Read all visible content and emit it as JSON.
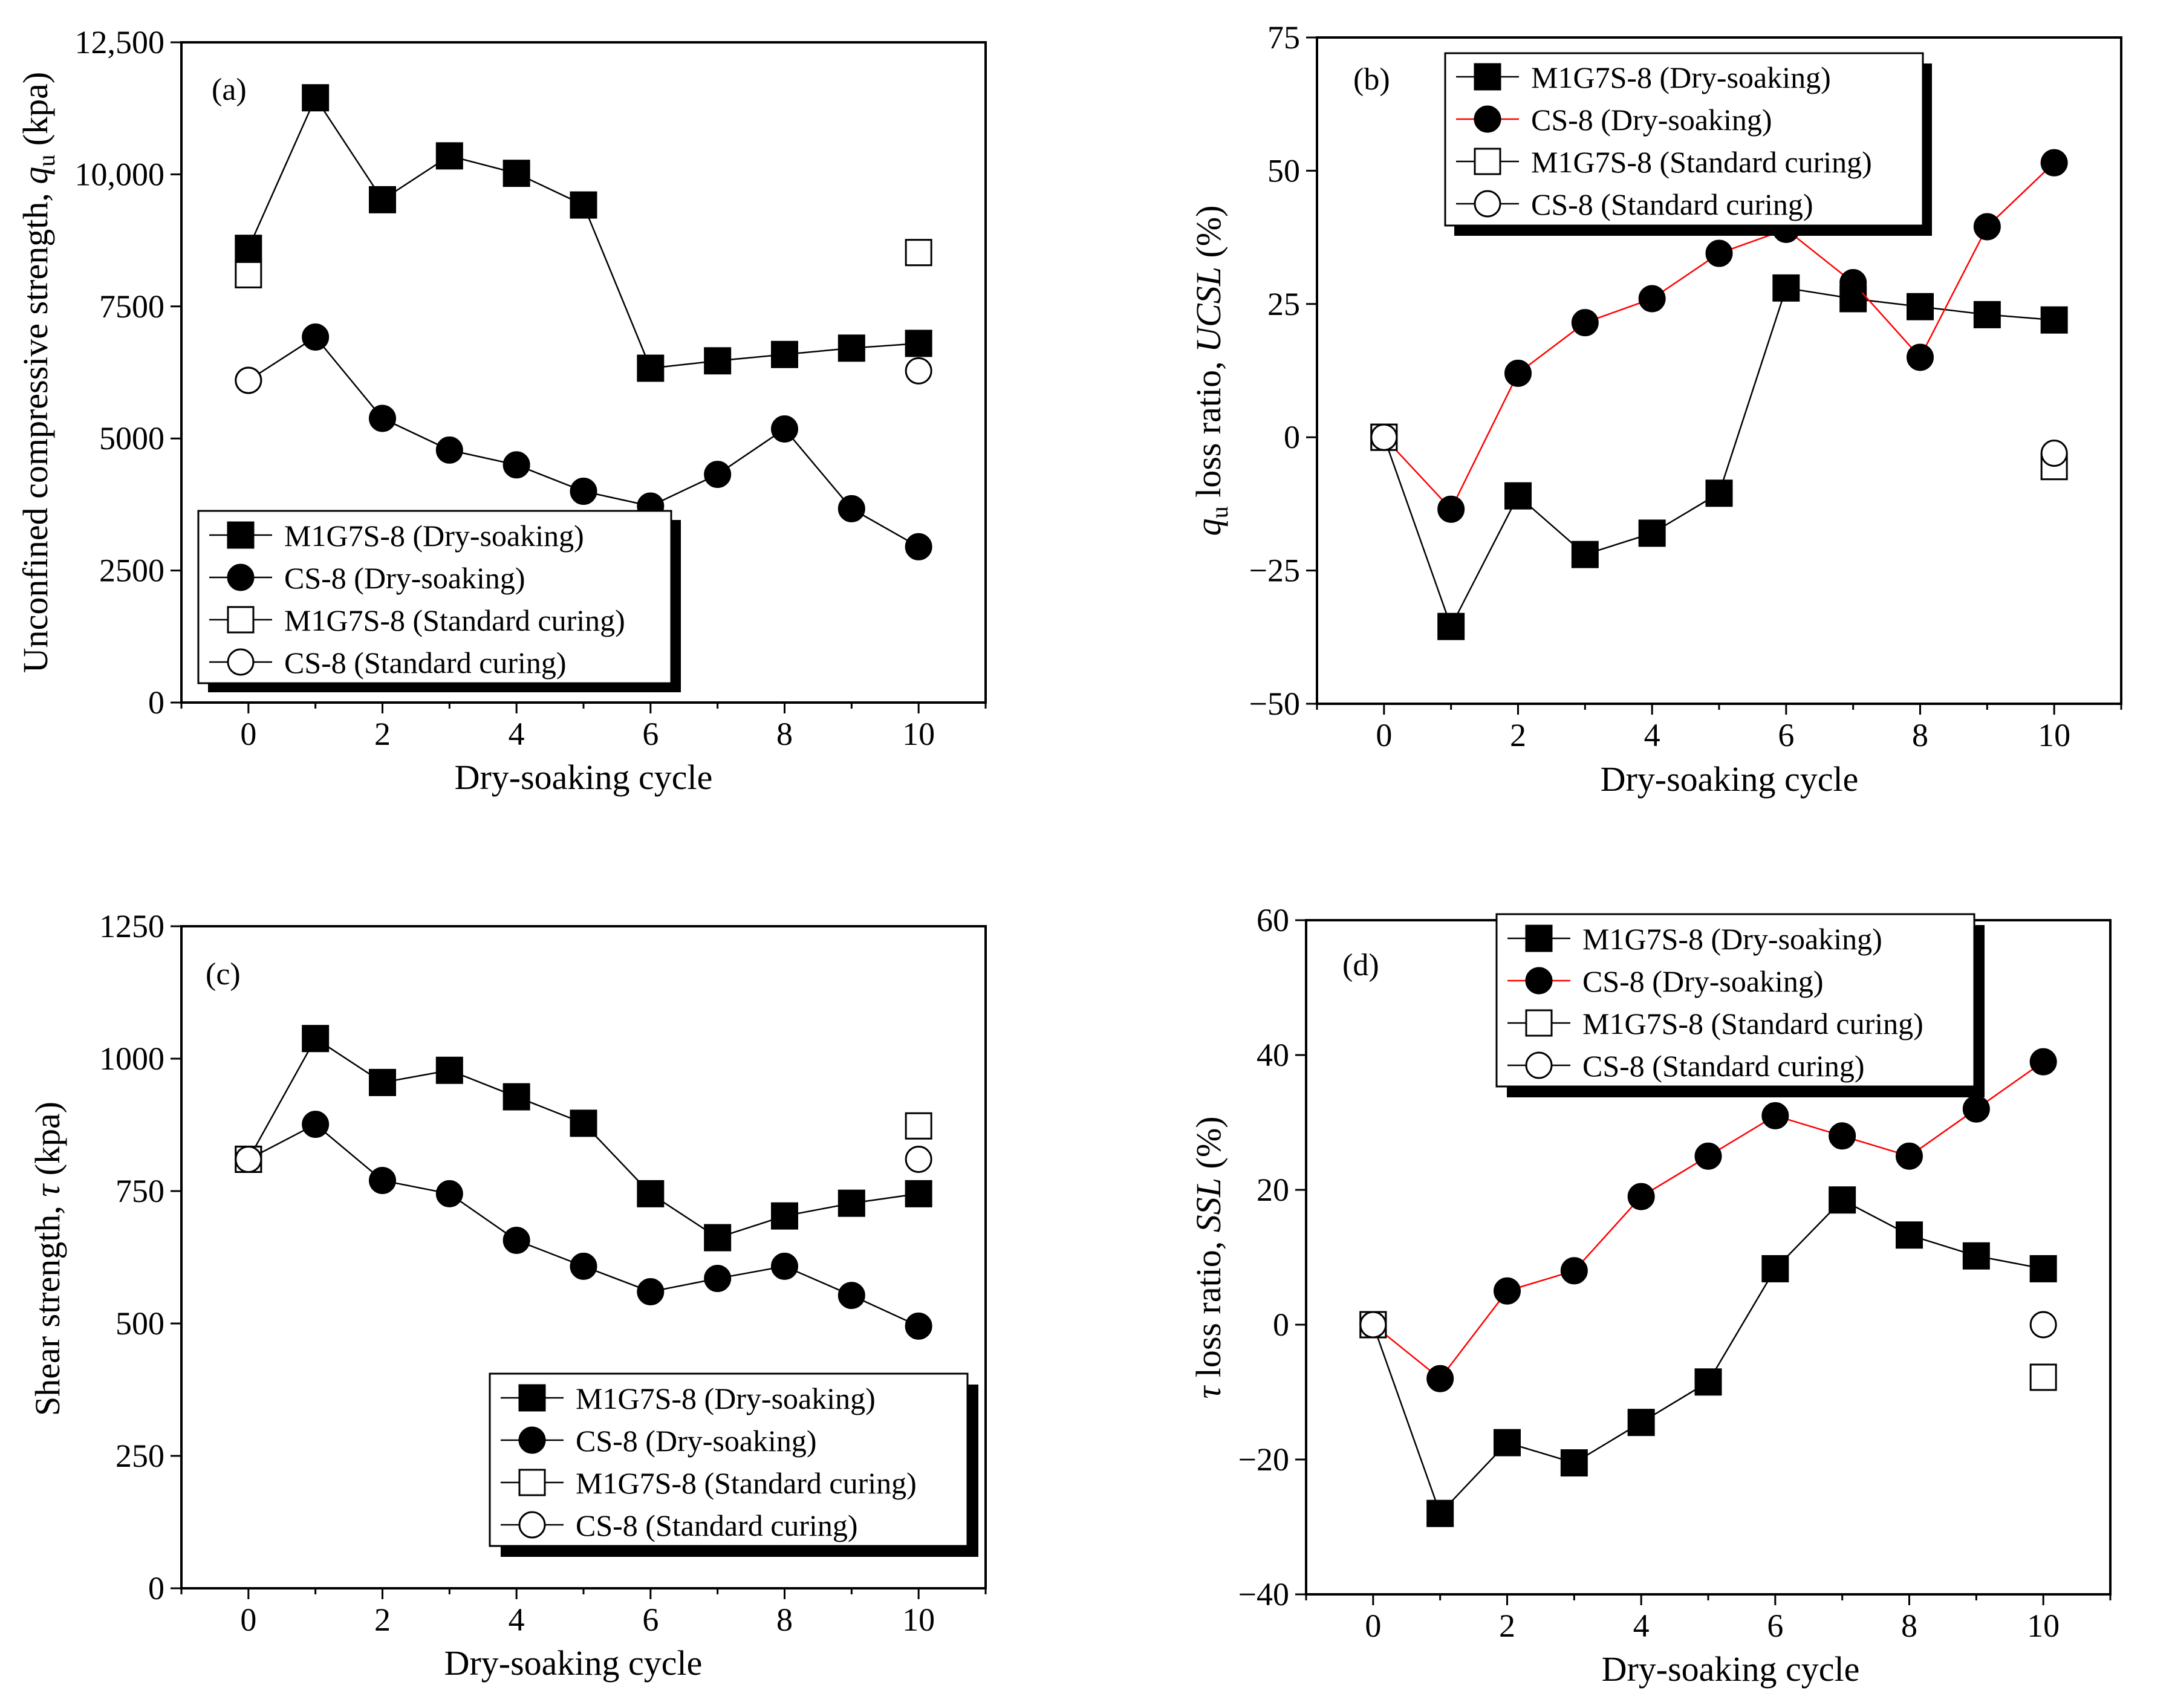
{
  "chart_data": [
    {
      "id": "a",
      "type": "line",
      "panel_label": "(a)",
      "xlabel": "Dry-soaking cycle",
      "ylabel_main": "Unconfined compressive strength, ",
      "ylabel_sym": "q",
      "ylabel_sub": "u",
      "ylabel_unit": " (kpa)",
      "xlim": [
        -1,
        11
      ],
      "ylim": [
        0,
        12500
      ],
      "xticks": [
        0,
        2,
        4,
        6,
        8,
        10
      ],
      "xtick_labels": [
        "0",
        "2",
        "4",
        "6",
        "8",
        "10"
      ],
      "yticks": [
        0,
        2500,
        5000,
        7500,
        10000,
        12500
      ],
      "ytick_labels": [
        "0",
        "2500",
        "5000",
        "7500",
        "10,000",
        "12,500"
      ],
      "legend_position": "bottom-left",
      "series": [
        {
          "name": "M1G7S-8 (Dry-soaking)",
          "marker": "square-filled",
          "line_color": "#000000",
          "x": [
            0,
            1,
            2,
            3,
            4,
            5,
            6,
            7,
            8,
            9,
            10
          ],
          "values": [
            8600,
            11450,
            9520,
            10350,
            10020,
            9420,
            6330,
            6470,
            6590,
            6710,
            6800
          ]
        },
        {
          "name": "CS-8 (Dry-soaking)",
          "marker": "circle-filled",
          "line_color": "#000000",
          "x": [
            0,
            1,
            2,
            3,
            4,
            5,
            6,
            7,
            8,
            9,
            10
          ],
          "values": [
            6100,
            6920,
            5380,
            4780,
            4500,
            4000,
            3720,
            4320,
            5180,
            3670,
            2950
          ]
        },
        {
          "name": "M1G7S-8 (Standard curing)",
          "marker": "square-open",
          "line_color": "#000000",
          "x": [
            0,
            10
          ],
          "values": [
            8100,
            8520
          ],
          "connect": false
        },
        {
          "name": "CS-8 (Standard curing)",
          "marker": "circle-open",
          "line_color": "#000000",
          "x": [
            0,
            10
          ],
          "values": [
            6100,
            6280
          ],
          "connect": false
        }
      ]
    },
    {
      "id": "b",
      "type": "line",
      "panel_label": "(b)",
      "xlabel": "Dry-soaking cycle",
      "ylabel_sym": "q",
      "ylabel_sub": "u",
      "ylabel_main": " loss ratio, ",
      "ylabel_italic": "UCSL",
      "ylabel_unit": " (%)",
      "xlim": [
        -1,
        11
      ],
      "ylim": [
        -50,
        75
      ],
      "xticks": [
        0,
        2,
        4,
        6,
        8,
        10
      ],
      "xtick_labels": [
        "0",
        "2",
        "4",
        "6",
        "8",
        "10"
      ],
      "yticks": [
        -50,
        -25,
        0,
        25,
        50,
        75
      ],
      "ytick_labels": [
        "−50",
        "−25",
        "0",
        "25",
        "50",
        "75"
      ],
      "legend_position": "top-center",
      "series": [
        {
          "name": "M1G7S-8 (Dry-soaking)",
          "marker": "square-filled",
          "line_color": "#000000",
          "x": [
            0,
            1,
            2,
            3,
            4,
            5,
            6,
            7,
            8,
            9,
            10
          ],
          "values": [
            0,
            -35.5,
            -11,
            -22,
            -18,
            -10.5,
            28,
            26,
            24.5,
            23,
            22
          ]
        },
        {
          "name": "CS-8 (Dry-soaking)",
          "marker": "circle-filled",
          "line_color": "#ff0000",
          "x": [
            0,
            1,
            2,
            3,
            4,
            5,
            6,
            7,
            8,
            9,
            10
          ],
          "values": [
            0,
            -13.5,
            12,
            21.5,
            26,
            34.5,
            39,
            29,
            15,
            39.5,
            51.5
          ]
        },
        {
          "name": "M1G7S-8 (Standard curing)",
          "marker": "square-open",
          "line_color": "#000000",
          "x": [
            0,
            10
          ],
          "values": [
            0,
            -5.5
          ],
          "connect": false
        },
        {
          "name": "CS-8 (Standard curing)",
          "marker": "circle-open",
          "line_color": "#000000",
          "x": [
            0,
            10
          ],
          "values": [
            0,
            -3
          ],
          "connect": false
        }
      ]
    },
    {
      "id": "c",
      "type": "line",
      "panel_label": "(c)",
      "xlabel": "Dry-soaking cycle",
      "ylabel_main": "Shear strength, ",
      "ylabel_italic": "τ",
      "ylabel_unit": " (kpa)",
      "xlim": [
        -1,
        11
      ],
      "ylim": [
        0,
        1250
      ],
      "xticks": [
        0,
        2,
        4,
        6,
        8,
        10
      ],
      "xtick_labels": [
        "0",
        "2",
        "4",
        "6",
        "8",
        "10"
      ],
      "yticks": [
        0,
        250,
        500,
        750,
        1000,
        1250
      ],
      "ytick_labels": [
        "0",
        "250",
        "500",
        "750",
        "1000",
        "1250"
      ],
      "legend_position": "bottom-right",
      "series": [
        {
          "name": "M1G7S-8 (Dry-soaking)",
          "marker": "square-filled",
          "line_color": "#000000",
          "x": [
            0,
            1,
            2,
            3,
            4,
            5,
            6,
            7,
            8,
            9,
            10
          ],
          "values": [
            810,
            1038,
            955,
            978,
            928,
            878,
            745,
            662,
            703,
            727,
            745
          ]
        },
        {
          "name": "CS-8 (Dry-soaking)",
          "marker": "circle-filled",
          "line_color": "#000000",
          "x": [
            0,
            1,
            2,
            3,
            4,
            5,
            6,
            7,
            8,
            9,
            10
          ],
          "values": [
            810,
            876,
            770,
            745,
            657,
            608,
            560,
            585,
            608,
            553,
            495
          ]
        },
        {
          "name": "M1G7S-8 (Standard curing)",
          "marker": "square-open",
          "line_color": "#000000",
          "x": [
            0,
            10
          ],
          "values": [
            810,
            873
          ],
          "connect": false
        },
        {
          "name": "CS-8 (Standard curing)",
          "marker": "circle-open",
          "line_color": "#000000",
          "x": [
            0,
            10
          ],
          "values": [
            810,
            810
          ],
          "connect": false
        }
      ]
    },
    {
      "id": "d",
      "type": "line",
      "panel_label": "(d)",
      "xlabel": "Dry-soaking cycle",
      "ylabel_italic_first": "τ",
      "ylabel_main": " loss ratio, ",
      "ylabel_italic": "SSL",
      "ylabel_unit": " (%)",
      "xlim": [
        -1,
        11
      ],
      "ylim": [
        -40,
        60
      ],
      "xticks": [
        0,
        2,
        4,
        6,
        8,
        10
      ],
      "xtick_labels": [
        "0",
        "2",
        "4",
        "6",
        "8",
        "10"
      ],
      "yticks": [
        -40,
        -20,
        0,
        20,
        40,
        60
      ],
      "ytick_labels": [
        "−40",
        "−20",
        "0",
        "20",
        "40",
        "60"
      ],
      "legend_position": "top-center",
      "series": [
        {
          "name": "M1G7S-8 (Dry-soaking)",
          "marker": "square-filled",
          "line_color": "#000000",
          "x": [
            0,
            1,
            2,
            3,
            4,
            5,
            6,
            7,
            8,
            9,
            10
          ],
          "values": [
            0,
            -28,
            -17.5,
            -20.5,
            -14.5,
            -8.5,
            8.3,
            18.5,
            13.3,
            10.2,
            8.3
          ]
        },
        {
          "name": "CS-8 (Dry-soaking)",
          "marker": "circle-filled",
          "line_color": "#ff0000",
          "x": [
            0,
            1,
            2,
            3,
            4,
            5,
            6,
            7,
            8,
            9,
            10
          ],
          "values": [
            0,
            -8,
            5,
            8,
            19,
            25,
            31,
            28,
            25,
            32,
            39
          ]
        },
        {
          "name": "M1G7S-8 (Standard curing)",
          "marker": "square-open",
          "line_color": "#000000",
          "x": [
            0,
            10
          ],
          "values": [
            0,
            -7.8
          ],
          "connect": false
        },
        {
          "name": "CS-8 (Standard curing)",
          "marker": "circle-open",
          "line_color": "#000000",
          "x": [
            0,
            10
          ],
          "values": [
            0,
            0
          ],
          "connect": false
        }
      ]
    }
  ]
}
